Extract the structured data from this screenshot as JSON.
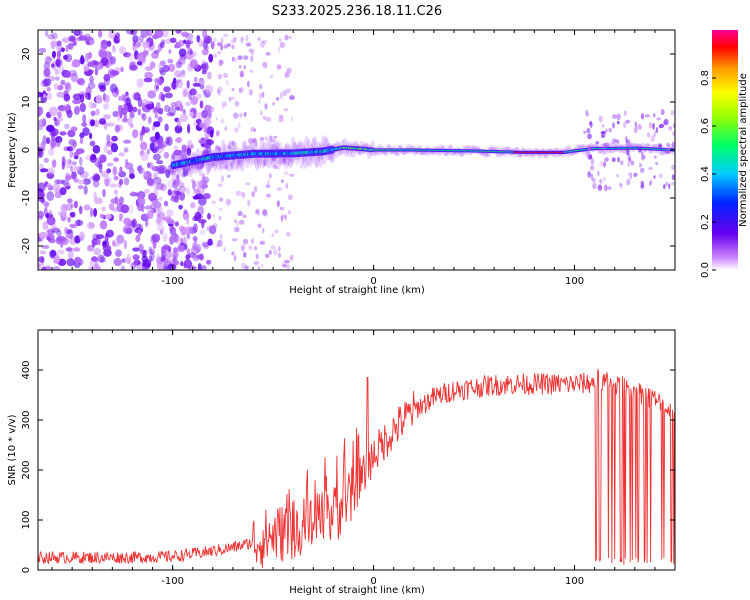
{
  "title": "S233.2025.236.18.11.C26",
  "charts": [
    {
      "type": "heatmap",
      "xlabel": "Height of straight line (km)",
      "ylabel": "Frequency (Hz)",
      "xlim": [
        -167,
        150
      ],
      "ylim": [
        -25,
        25
      ],
      "x_ticks": [
        -100,
        0,
        100
      ],
      "y_ticks": [
        -20,
        -10,
        0,
        10,
        20
      ],
      "colorbar": {
        "label": "Normalized spectral amplitude",
        "ticks": [
          0.0,
          0.2,
          0.4,
          0.6,
          0.8
        ],
        "range": [
          0,
          1
        ],
        "colormap": "rainbow: violet-blue-cyan-green-yellow-orange-red-magenta"
      },
      "features": {
        "noise_region_x": [
          -167,
          -80
        ],
        "noise_scatter_until_x": -40,
        "signal_band_start_x": -100,
        "signal_band_center_hz": [
          [
            -100,
            -3.2
          ],
          [
            -80,
            -1.5
          ],
          [
            -60,
            -0.8
          ],
          [
            -40,
            -0.7
          ],
          [
            -25,
            -0.3
          ],
          [
            -15,
            0.5
          ],
          [
            -5,
            0.2
          ],
          [
            0,
            0.0
          ],
          [
            20,
            0.0
          ],
          [
            50,
            -0.2
          ],
          [
            75,
            -0.5
          ],
          [
            95,
            -0.5
          ],
          [
            100,
            -0.2
          ],
          [
            110,
            0.3
          ],
          [
            130,
            0.4
          ],
          [
            150,
            0.0
          ]
        ],
        "peak_amplitude_segment_x": [
          70,
          95
        ]
      }
    },
    {
      "type": "line",
      "xlabel": "Height of straight line (km)",
      "ylabel": "SNR (10 * v/v)",
      "xlim": [
        -167,
        150
      ],
      "ylim": [
        0,
        480
      ],
      "x_ticks": [
        -100,
        0,
        100
      ],
      "y_ticks": [
        0,
        100,
        200,
        300,
        400
      ],
      "color": "#ee3333",
      "series": [
        {
          "x": [
            -167,
            -140,
            -120,
            -100,
            -90,
            -80,
            -70,
            -60,
            -50,
            -40,
            -30,
            -20,
            -10,
            -5,
            0,
            10,
            20,
            30,
            40,
            50,
            60,
            70,
            80,
            90,
            100,
            110,
            112,
            120,
            130,
            140,
            150
          ],
          "y": [
            25,
            25,
            25,
            27,
            32,
            38,
            45,
            55,
            70,
            80,
            90,
            110,
            150,
            190,
            230,
            280,
            320,
            345,
            360,
            365,
            370,
            372,
            372,
            372,
            372,
            375,
            380,
            370,
            360,
            340,
            310
          ]
        }
      ],
      "dropout_region_x": [
        110,
        150
      ]
    }
  ]
}
